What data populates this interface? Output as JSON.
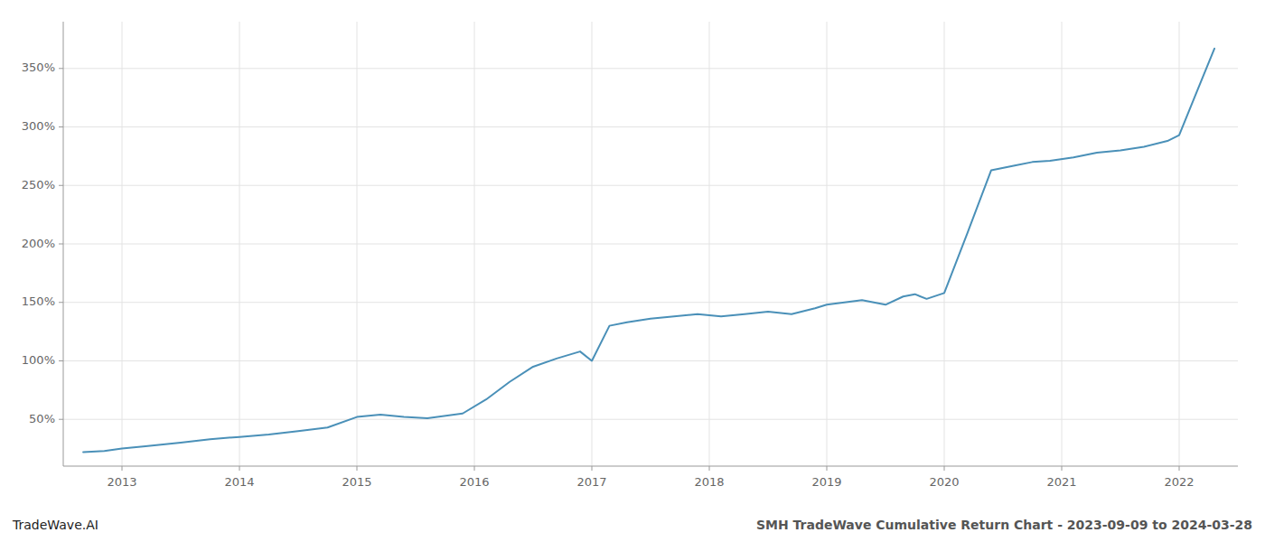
{
  "chart_data": {
    "type": "line",
    "title": "SMH TradeWave Cumulative Return Chart - 2023-09-09 to 2024-03-28",
    "annotations": [
      "TradeWave.AI"
    ],
    "x": [
      2012.67,
      2012.85,
      2013.0,
      2013.2,
      2013.5,
      2013.75,
      2014.0,
      2014.25,
      2014.5,
      2014.75,
      2015.0,
      2015.2,
      2015.4,
      2015.6,
      2015.9,
      2016.1,
      2016.3,
      2016.5,
      2016.7,
      2016.9,
      2017.0,
      2017.15,
      2017.3,
      2017.5,
      2017.7,
      2017.9,
      2018.1,
      2018.3,
      2018.5,
      2018.7,
      2018.9,
      2019.0,
      2019.15,
      2019.3,
      2019.5,
      2019.65,
      2019.75,
      2019.85,
      2020.0,
      2020.2,
      2020.4,
      2020.6,
      2020.75,
      2020.9,
      2021.1,
      2021.3,
      2021.5,
      2021.7,
      2021.9,
      2022.0,
      2022.15,
      2022.3
    ],
    "values": [
      22,
      23,
      25,
      27,
      30,
      33,
      35,
      37,
      40,
      43,
      52,
      54,
      52,
      51,
      55,
      67,
      82,
      95,
      102,
      108,
      100,
      130,
      133,
      136,
      138,
      140,
      138,
      140,
      142,
      140,
      145,
      148,
      150,
      152,
      148,
      155,
      157,
      153,
      158,
      210,
      263,
      267,
      270,
      271,
      274,
      278,
      280,
      283,
      288,
      293,
      330,
      367
    ],
    "color": "#4a90b8",
    "xlim": [
      2012.5,
      2022.5
    ],
    "xticks": [
      2013,
      2014,
      2015,
      2016,
      2017,
      2018,
      2019,
      2020,
      2021,
      2022
    ],
    "ylim": [
      10,
      390
    ],
    "yticks": [
      {
        "value": 50,
        "label": "50%"
      },
      {
        "value": 100,
        "label": "100%"
      },
      {
        "value": 150,
        "label": "150%"
      },
      {
        "value": 200,
        "label": "200%"
      },
      {
        "value": 250,
        "label": "250%"
      },
      {
        "value": 300,
        "label": "300%"
      },
      {
        "value": 350,
        "label": "350%"
      }
    ],
    "grid": true
  }
}
